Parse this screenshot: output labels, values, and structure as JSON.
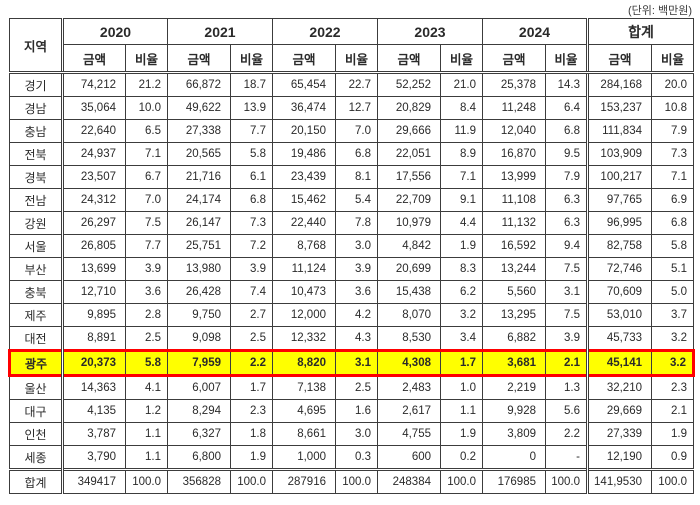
{
  "unit_label": "(단위: 백만원)",
  "colors": {
    "highlight_bg": "#ffff00",
    "highlight_border": "#ff0000",
    "grid_line": "#3c3c3c"
  },
  "table": {
    "region_header": "지역",
    "col_groups": [
      "2020",
      "2021",
      "2022",
      "2023",
      "2024",
      "합계"
    ],
    "sub_headers": [
      "금액",
      "비율"
    ],
    "rows": [
      {
        "region": "경기",
        "values": [
          "74,212",
          "21.2",
          "66,872",
          "18.7",
          "65,454",
          "22.7",
          "52,252",
          "21.0",
          "25,378",
          "14.3",
          "284,168",
          "20.0"
        ]
      },
      {
        "region": "경남",
        "values": [
          "35,064",
          "10.0",
          "49,622",
          "13.9",
          "36,474",
          "12.7",
          "20,829",
          "8.4",
          "11,248",
          "6.4",
          "153,237",
          "10.8"
        ]
      },
      {
        "region": "충남",
        "values": [
          "22,640",
          "6.5",
          "27,338",
          "7.7",
          "20,150",
          "7.0",
          "29,666",
          "11.9",
          "12,040",
          "6.8",
          "111,834",
          "7.9"
        ]
      },
      {
        "region": "전북",
        "values": [
          "24,937",
          "7.1",
          "20,565",
          "5.8",
          "19,486",
          "6.8",
          "22,051",
          "8.9",
          "16,870",
          "9.5",
          "103,909",
          "7.3"
        ]
      },
      {
        "region": "경북",
        "values": [
          "23,507",
          "6.7",
          "21,716",
          "6.1",
          "23,439",
          "8.1",
          "17,556",
          "7.1",
          "13,999",
          "7.9",
          "100,217",
          "7.1"
        ]
      },
      {
        "region": "전남",
        "values": [
          "24,312",
          "7.0",
          "24,174",
          "6.8",
          "15,462",
          "5.4",
          "22,709",
          "9.1",
          "11,108",
          "6.3",
          "97,765",
          "6.9"
        ]
      },
      {
        "region": "강원",
        "values": [
          "26,297",
          "7.5",
          "26,147",
          "7.3",
          "22,440",
          "7.8",
          "10,979",
          "4.4",
          "11,132",
          "6.3",
          "96,995",
          "6.8"
        ]
      },
      {
        "region": "서울",
        "values": [
          "26,805",
          "7.7",
          "25,751",
          "7.2",
          "8,768",
          "3.0",
          "4,842",
          "1.9",
          "16,592",
          "9.4",
          "82,758",
          "5.8"
        ]
      },
      {
        "region": "부산",
        "values": [
          "13,699",
          "3.9",
          "13,980",
          "3.9",
          "11,124",
          "3.9",
          "20,699",
          "8.3",
          "13,244",
          "7.5",
          "72,746",
          "5.1"
        ]
      },
      {
        "region": "충북",
        "values": [
          "12,710",
          "3.6",
          "26,428",
          "7.4",
          "10,473",
          "3.6",
          "15,438",
          "6.2",
          "5,560",
          "3.1",
          "70,609",
          "5.0"
        ]
      },
      {
        "region": "제주",
        "values": [
          "9,895",
          "2.8",
          "9,750",
          "2.7",
          "12,000",
          "4.2",
          "8,070",
          "3.2",
          "13,295",
          "7.5",
          "53,010",
          "3.7"
        ]
      },
      {
        "region": "대전",
        "values": [
          "8,891",
          "2.5",
          "9,098",
          "2.5",
          "12,332",
          "4.3",
          "8,530",
          "3.4",
          "6,882",
          "3.9",
          "45,733",
          "3.2"
        ]
      },
      {
        "region": "광주",
        "highlight": true,
        "values": [
          "20,373",
          "5.8",
          "7,959",
          "2.2",
          "8,820",
          "3.1",
          "4,308",
          "1.7",
          "3,681",
          "2.1",
          "45,141",
          "3.2"
        ]
      },
      {
        "region": "울산",
        "values": [
          "14,363",
          "4.1",
          "6,007",
          "1.7",
          "7,138",
          "2.5",
          "2,483",
          "1.0",
          "2,219",
          "1.3",
          "32,210",
          "2.3"
        ]
      },
      {
        "region": "대구",
        "values": [
          "4,135",
          "1.2",
          "8,294",
          "2.3",
          "4,695",
          "1.6",
          "2,617",
          "1.1",
          "9,928",
          "5.6",
          "29,669",
          "2.1"
        ]
      },
      {
        "region": "인천",
        "values": [
          "3,787",
          "1.1",
          "6,327",
          "1.8",
          "8,661",
          "3.0",
          "4,755",
          "1.9",
          "3,809",
          "2.2",
          "27,339",
          "1.9"
        ]
      },
      {
        "region": "세종",
        "values": [
          "3,790",
          "1.1",
          "6,800",
          "1.9",
          "1,000",
          "0.3",
          "600",
          "0.2",
          "0",
          "-",
          "12,190",
          "0.9"
        ]
      },
      {
        "region": "합계",
        "total": true,
        "values": [
          "349417",
          "100.0",
          "356828",
          "100.0",
          "287916",
          "100.0",
          "248384",
          "100.0",
          "176985",
          "100.0",
          "141,9530",
          "100.0"
        ]
      }
    ]
  }
}
